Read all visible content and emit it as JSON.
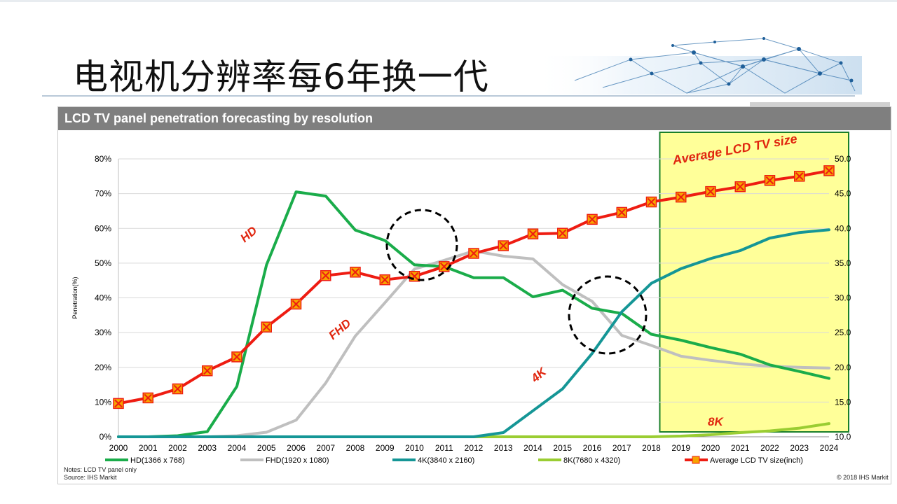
{
  "slide": {
    "title": "电视机分辨率每6年换一代"
  },
  "chart_header": "LCD TV panel penetration forecasting by resolution",
  "notes": "Notes: LCD  TV panel only",
  "source": "Source: IHS Markit",
  "copyright": "© 2018 IHS Markit",
  "colors": {
    "hd": "#1aac4a",
    "fhd": "#bfbfbf",
    "k4": "#159696",
    "k8": "#9acd32",
    "avg": "#ee1c12",
    "marker": "#f7a400",
    "forecast_fill": "#ffff99",
    "forecast_border": "#1b7f2a",
    "annotation": "#e0250e"
  },
  "annotations": {
    "hd": "HD",
    "fhd": "FHD",
    "k4": "4K",
    "k8": "8K",
    "avg": "Average LCD TV size"
  },
  "chart_data": {
    "type": "line",
    "x": [
      "2000",
      "2001",
      "2002",
      "2003",
      "2004",
      "2005",
      "2006",
      "2007",
      "2008",
      "2009",
      "2010",
      "2011",
      "2012",
      "2013",
      "2014",
      "2015",
      "2016",
      "2017",
      "2018",
      "2019",
      "2020",
      "2021",
      "2022",
      "2023",
      "2024"
    ],
    "ylabel": "Penetration(%)",
    "ylim": [
      0,
      80
    ],
    "y_ticks": [
      "0%",
      "10%",
      "20%",
      "30%",
      "40%",
      "50%",
      "60%",
      "70%",
      "80%"
    ],
    "y2lim": [
      10,
      50
    ],
    "y2_ticks": [
      "10.0",
      "15.0",
      "20.0",
      "25.0",
      "30.0",
      "35.0",
      "40.0",
      "45.0",
      "50.0"
    ],
    "grid": true,
    "legend_position": "bottom",
    "forecast_region": [
      "2018",
      "2024"
    ],
    "series": [
      {
        "name": "HD(1366 x 768)",
        "axis": "left",
        "values": [
          0,
          0,
          0.3,
          1.5,
          14.5,
          49.5,
          70.5,
          69.3,
          59.5,
          56.5,
          49.5,
          49,
          45.8,
          45.8,
          40.3,
          42.2,
          37,
          35.5,
          29.5,
          27.8,
          25.7,
          23.8,
          20.7,
          18.8,
          16.8
        ]
      },
      {
        "name": "FHD(1920 x 1080)",
        "axis": "left",
        "values": [
          0,
          0,
          0,
          0,
          0.3,
          1.3,
          4.8,
          15.5,
          29,
          38.6,
          48.3,
          50.8,
          53.5,
          52,
          51.2,
          43.8,
          39,
          29.2,
          26.3,
          23.2,
          22,
          21,
          20.3,
          20,
          19.8
        ]
      },
      {
        "name": "4K(3840 x 2160)",
        "axis": "left",
        "values": [
          0,
          0,
          0,
          0,
          0,
          0,
          0,
          0,
          0,
          0,
          0,
          0,
          0,
          1.2,
          7.5,
          13.8,
          24,
          36,
          44.2,
          48.4,
          51.3,
          53.6,
          57.2,
          58.8,
          59.6
        ]
      },
      {
        "name": "8K(7680 x 4320)",
        "axis": "left",
        "values": [
          0,
          0,
          0,
          0,
          0,
          0,
          0,
          0,
          0,
          0,
          0,
          0,
          0,
          0,
          0,
          0,
          0,
          0,
          0,
          0.2,
          0.6,
          1.2,
          1.7,
          2.5,
          3.8
        ]
      },
      {
        "name": "Average LCD TV size(inch)",
        "axis": "right",
        "values": [
          14.8,
          15.6,
          16.9,
          19.5,
          21.5,
          25.8,
          29.1,
          33.2,
          33.7,
          32.6,
          33.1,
          34.5,
          36.4,
          37.5,
          39.2,
          39.3,
          41.3,
          42.3,
          43.8,
          44.5,
          45.3,
          46,
          46.9,
          47.5,
          48.3
        ]
      }
    ]
  }
}
